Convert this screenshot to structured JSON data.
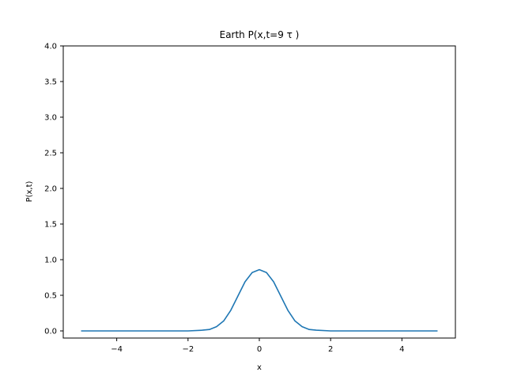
{
  "chart_data": {
    "type": "line",
    "title": "Earth P(x,t=9 τ )",
    "xlabel": "x",
    "ylabel": "P(x,t)",
    "xlim": [
      -5.5,
      5.5
    ],
    "ylim": [
      -0.1,
      4.0
    ],
    "xticks": [
      -4,
      -2,
      0,
      2,
      4
    ],
    "xtick_labels": [
      "−4",
      "−2",
      "0",
      "2",
      "4"
    ],
    "yticks": [
      0.0,
      0.5,
      1.0,
      1.5,
      2.0,
      2.5,
      3.0,
      3.5,
      4.0
    ],
    "ytick_labels": [
      "0.0",
      "0.5",
      "1.0",
      "1.5",
      "2.0",
      "2.5",
      "3.0",
      "3.5",
      "4.0"
    ],
    "grid": false,
    "line_color": "#1f77b4",
    "series": [
      {
        "values_description_peak": 0.86,
        "x": [
          -5.0,
          -4.0,
          -3.0,
          -2.0,
          -1.6,
          -1.4,
          -1.2,
          -1.0,
          -0.8,
          -0.6,
          -0.4,
          -0.2,
          0.0,
          0.2,
          0.4,
          0.6,
          0.8,
          1.0,
          1.2,
          1.4,
          1.6,
          2.0,
          3.0,
          4.0,
          5.0
        ],
        "y": [
          0.0,
          0.0,
          0.0,
          0.0,
          0.01,
          0.02,
          0.06,
          0.14,
          0.29,
          0.49,
          0.69,
          0.82,
          0.86,
          0.82,
          0.69,
          0.49,
          0.29,
          0.14,
          0.06,
          0.02,
          0.01,
          0.0,
          0.0,
          0.0,
          0.0
        ]
      }
    ]
  }
}
